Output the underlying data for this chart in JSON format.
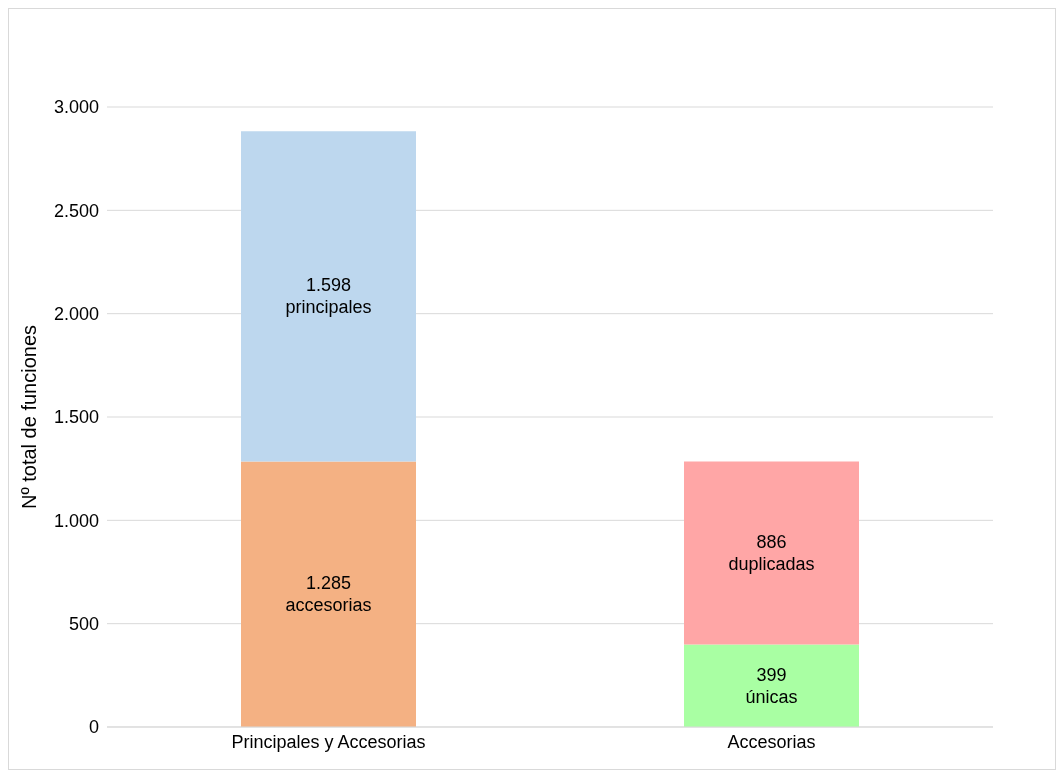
{
  "chart_data": {
    "type": "bar",
    "stacked": true,
    "ylabel": "Nº total de funciones",
    "categories": [
      "Principales y Accesorias",
      "Accesorias"
    ],
    "series": [
      {
        "values": [
          1285,
          399
        ],
        "colors": [
          "#f4b183",
          "#a9ffa3"
        ],
        "value_labels": [
          "1.285\naccesorias",
          "399\núnicas"
        ]
      },
      {
        "values": [
          1598,
          886
        ],
        "colors": [
          "#bdd7ee",
          "#ffa6a6"
        ],
        "value_labels": [
          "1.598\nprincipales",
          "886\nduplicadas"
        ]
      }
    ],
    "ylim": [
      0,
      3000
    ],
    "yticks": [
      {
        "value": 0,
        "label": "0"
      },
      {
        "value": 500,
        "label": "500"
      },
      {
        "value": 1000,
        "label": "1.000"
      },
      {
        "value": 1500,
        "label": "1.500"
      },
      {
        "value": 2000,
        "label": "2.000"
      },
      {
        "value": 2500,
        "label": "2.500"
      },
      {
        "value": 3000,
        "label": "3.000"
      }
    ],
    "grid": "y",
    "legend": false
  }
}
